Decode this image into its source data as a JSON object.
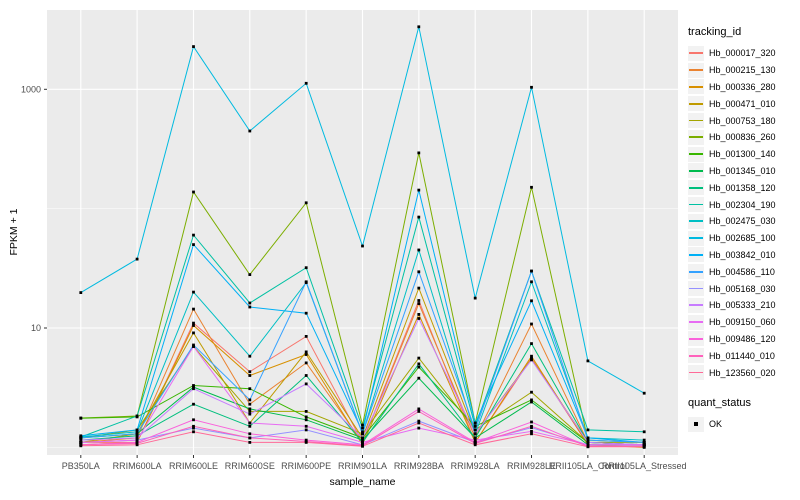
{
  "chart_data": {
    "type": "line",
    "title": "",
    "xlabel": "sample_name",
    "ylabel": "FPKM + 1",
    "y_scale": "log10",
    "grid": true,
    "panel_bg": "#EBEBEB",
    "grid_color": "#FFFFFF",
    "point_color": "#000000",
    "axis_text_color": "#4D4D4D",
    "y_ticks": [
      {
        "label": "10",
        "value": 10
      },
      {
        "label": "1000",
        "value": 1000
      }
    ],
    "y_minor_values": [
      1,
      100
    ],
    "ylim": [
      0.86,
      4600
    ],
    "categories": [
      "PB350LA",
      "RRIM600LA",
      "RRIM600LE",
      "RRIM600SE",
      "RRIM600PE",
      "RRIM901LA",
      "RRIM928BA",
      "RRIM928LA",
      "RRIM928LE",
      "RRII105LA_Control",
      "RRII105LA_Stressed"
    ],
    "series": [
      {
        "name": "Hb_000017_320",
        "color": "#F8766D",
        "values": [
          1.1,
          1.1,
          11,
          4.3,
          8.5,
          1.1,
          17,
          1.1,
          5.6,
          1.05,
          1.05
        ]
      },
      {
        "name": "Hb_000215_130",
        "color": "#EA8331",
        "values": [
          1.1,
          1.2,
          14.4,
          2.3,
          5.1,
          1.1,
          16,
          1.2,
          10.8,
          1.1,
          1.05
        ]
      },
      {
        "name": "Hb_000336_280",
        "color": "#D89000",
        "values": [
          1.05,
          1.1,
          10.5,
          4.0,
          6.0,
          1.05,
          13,
          1.1,
          5.8,
          1.05,
          1.0
        ]
      },
      {
        "name": "Hb_000471_010",
        "color": "#C09B00",
        "values": [
          1.1,
          1.3,
          9.1,
          1.6,
          6.3,
          1.2,
          21.6,
          1.3,
          5.5,
          1.1,
          1.05
        ]
      },
      {
        "name": "Hb_000753_180",
        "color": "#A3A500",
        "values": [
          1.2,
          1.4,
          7.0,
          2.0,
          2.0,
          1.3,
          5.6,
          1.4,
          2.9,
          1.1,
          1.1
        ]
      },
      {
        "name": "Hb_000836_260",
        "color": "#7CAE00",
        "values": [
          1.76,
          1.83,
          138,
          28,
          112,
          1.54,
          293,
          1.6,
          151,
          1.15,
          1.1
        ]
      },
      {
        "name": "Hb_001300_140",
        "color": "#39B600",
        "values": [
          1.75,
          1.8,
          3.3,
          3.1,
          1.8,
          1.2,
          4.7,
          1.5,
          2.5,
          1.1,
          1.05
        ]
      },
      {
        "name": "Hb_001345_010",
        "color": "#00BB4E",
        "values": [
          1.2,
          1.3,
          3.2,
          2.1,
          1.7,
          1.15,
          3.8,
          1.2,
          2.4,
          1.05,
          1.05
        ]
      },
      {
        "name": "Hb_001358_120",
        "color": "#00BF7D",
        "values": [
          1.15,
          1.25,
          2.3,
          1.5,
          4.0,
          1.1,
          5.0,
          1.2,
          7.4,
          1.1,
          1.05
        ]
      },
      {
        "name": "Hb_002304_190",
        "color": "#00C1A3",
        "values": [
          1.22,
          1.83,
          60,
          16.2,
          32,
          1.45,
          85,
          1.5,
          30,
          1.4,
          1.35
        ]
      },
      {
        "name": "Hb_002475_030",
        "color": "#00BFC4",
        "values": [
          1.22,
          1.35,
          20,
          5.8,
          24,
          1.3,
          45,
          1.3,
          24.4,
          1.2,
          1.15
        ]
      },
      {
        "name": "Hb_002685_100",
        "color": "#00BAE0",
        "values": [
          19.8,
          37.8,
          2280,
          447,
          1123,
          48.6,
          3340,
          17.8,
          1040,
          5.3,
          2.84
        ]
      },
      {
        "name": "Hb_003842_010",
        "color": "#00B0F6",
        "values": [
          1.25,
          1.4,
          50,
          15,
          13.3,
          1.35,
          143,
          1.6,
          16.9,
          1.2,
          1.1
        ]
      },
      {
        "name": "Hb_004586_110",
        "color": "#35A2FF",
        "values": [
          1.2,
          1.3,
          7.2,
          2.5,
          24.4,
          1.3,
          29.6,
          1.4,
          30,
          1.15,
          1.1
        ]
      },
      {
        "name": "Hb_005168_030",
        "color": "#9590FF",
        "values": [
          1.1,
          1.15,
          1.45,
          1.2,
          1.4,
          1.05,
          1.66,
          1.1,
          1.46,
          1.05,
          1.05
        ]
      },
      {
        "name": "Hb_005333_210",
        "color": "#C77CFF",
        "values": [
          1.15,
          1.2,
          3.1,
          1.9,
          3.4,
          1.2,
          12,
          1.3,
          5.4,
          1.1,
          1.05
        ]
      },
      {
        "name": "Hb_009150_060",
        "color": "#E76BF3",
        "values": [
          1.1,
          1.15,
          7.0,
          1.6,
          1.5,
          1.1,
          1.45,
          1.15,
          1.36,
          1.05,
          1.05
        ]
      },
      {
        "name": "Hb_009486_120",
        "color": "#FA62DB",
        "values": [
          1.05,
          1.1,
          1.7,
          1.3,
          1.15,
          1.05,
          2.1,
          1.1,
          1.63,
          1.02,
          1.02
        ]
      },
      {
        "name": "Hb_011440_010",
        "color": "#FF62BC",
        "values": [
          1.05,
          1.08,
          1.5,
          1.2,
          1.12,
          1.03,
          2.0,
          1.08,
          1.5,
          1.02,
          1.02
        ]
      },
      {
        "name": "Hb_123560_020",
        "color": "#FF6A98",
        "values": [
          1.03,
          1.05,
          1.35,
          1.1,
          1.1,
          1.02,
          1.6,
          1.05,
          1.3,
          1.01,
          1.01
        ]
      }
    ],
    "legend_position": "right"
  },
  "legend": {
    "tracking_title": "tracking_id",
    "quant_title": "quant_status",
    "quant_items": [
      {
        "label": "OK"
      }
    ]
  }
}
